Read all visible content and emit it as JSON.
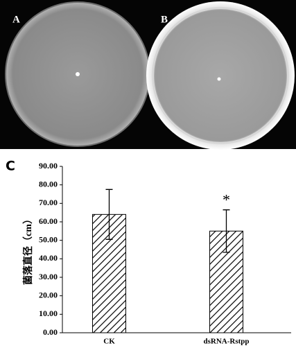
{
  "panel_labels": [
    "A",
    "B",
    "C"
  ],
  "chart_data": {
    "type": "bar",
    "ylabel": "菌落直径（cm）",
    "categories": [
      "CK",
      "dsRNA-Rstpp"
    ],
    "values": [
      64,
      55
    ],
    "errors": [
      13.5,
      11.5
    ],
    "annotation": "*",
    "color": "#000000",
    "hatch": true,
    "ylim": [
      0,
      90
    ],
    "yticks": [
      {
        "value": 0,
        "label": "0.00"
      },
      {
        "value": 10,
        "label": "10.00"
      },
      {
        "value": 20,
        "label": "20.00"
      },
      {
        "value": 30,
        "label": "30.00"
      },
      {
        "value": 40,
        "label": "40.00"
      },
      {
        "value": 50,
        "label": "50.00"
      },
      {
        "value": 60,
        "label": "60.00"
      },
      {
        "value": 70,
        "label": "70.00"
      },
      {
        "value": 80,
        "label": "80.00"
      },
      {
        "value": 90,
        "label": "90.00"
      }
    ]
  }
}
